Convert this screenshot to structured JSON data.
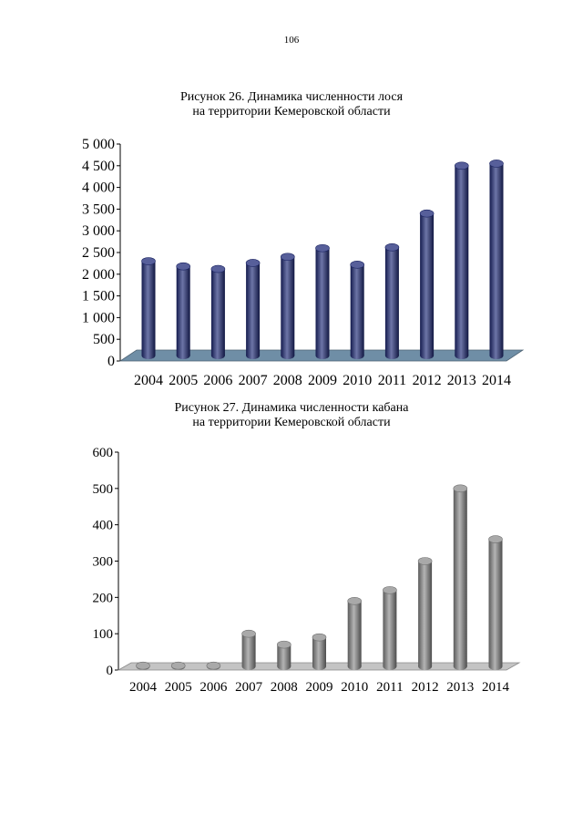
{
  "page_number": "106",
  "chart_data": [
    {
      "type": "bar",
      "title_line1": "Рисунок 26. Динамика численности лося",
      "title_line2": "на территории Кемеровской области",
      "categories": [
        "2004",
        "2005",
        "2006",
        "2007",
        "2008",
        "2009",
        "2010",
        "2011",
        "2012",
        "2013",
        "2014"
      ],
      "values": [
        2300,
        2180,
        2120,
        2260,
        2400,
        2600,
        2220,
        2620,
        3400,
        4500,
        4550
      ],
      "ylim": [
        0,
        5000
      ],
      "yticks": [
        0,
        500,
        1000,
        1500,
        2000,
        2500,
        3000,
        3500,
        4000,
        4500,
        5000
      ],
      "ytick_labels": [
        "0",
        "500",
        "1 000",
        "1 500",
        "2 000",
        "2 500",
        "3 000",
        "3 500",
        "4 000",
        "4 500",
        "5 000"
      ],
      "xlabel": "",
      "ylabel": "",
      "grid": false,
      "legend": "none",
      "bar_color": "#1f2a78",
      "floor_color": "#6f8ea6"
    },
    {
      "type": "bar",
      "title_line1": "Рисунок 27. Динамика численности кабана",
      "title_line2": "на территории Кемеровской области",
      "categories": [
        "2004",
        "2005",
        "2006",
        "2007",
        "2008",
        "2009",
        "2010",
        "2011",
        "2012",
        "2013",
        "2014"
      ],
      "values": [
        12,
        12,
        12,
        100,
        70,
        90,
        190,
        220,
        300,
        500,
        360
      ],
      "ylim": [
        0,
        600
      ],
      "yticks": [
        0,
        100,
        200,
        300,
        400,
        500,
        600
      ],
      "ytick_labels": [
        "0",
        "100",
        "200",
        "300",
        "400",
        "500",
        "600"
      ],
      "xlabel": "",
      "ylabel": "",
      "grid": false,
      "legend": "none",
      "bar_color": "#8c8c8c",
      "floor_color": "#c4c4c4"
    }
  ]
}
